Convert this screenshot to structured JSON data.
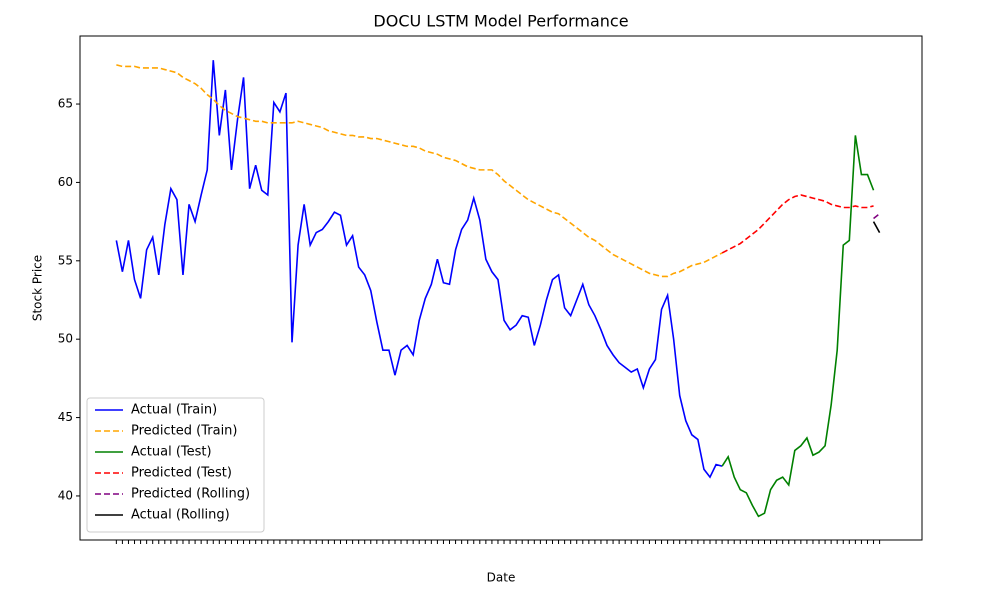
{
  "chart_data": {
    "type": "line",
    "title": "DOCU LSTM Model Performance",
    "x_label": "Date",
    "y_label": "Stock Price",
    "categories": [
      null,
      null,
      null,
      null,
      null,
      null,
      null,
      null,
      null,
      null,
      null,
      null,
      null,
      null,
      null,
      null,
      null,
      null,
      null,
      null,
      null,
      null,
      null,
      null,
      null,
      null,
      null,
      null,
      null,
      null,
      null,
      null,
      null,
      null,
      null,
      null,
      null,
      null,
      null,
      null,
      null,
      null,
      null,
      null,
      null,
      null,
      null,
      null,
      null,
      null,
      null,
      null,
      null,
      null,
      null,
      null,
      null,
      null,
      null,
      null,
      null,
      null,
      null,
      null,
      null,
      null,
      null,
      null,
      null,
      null,
      null,
      null,
      null,
      null,
      null,
      null,
      null,
      null,
      null,
      null,
      null,
      null,
      null,
      null,
      null,
      null,
      null,
      null,
      null,
      null,
      null,
      null,
      null,
      null,
      null,
      null,
      null,
      null,
      null,
      null,
      null,
      null,
      null,
      null,
      null,
      null,
      null,
      null,
      null,
      null,
      null,
      null,
      null,
      null,
      null,
      null,
      null,
      null,
      null,
      null,
      null,
      null,
      null,
      null,
      null,
      null,
      null
    ],
    "xlim": [
      -6,
      133
    ],
    "ylim": [
      37.19,
      69.34
    ],
    "yticks": [
      40,
      45,
      50,
      55,
      60,
      65
    ],
    "grid": false,
    "legend": "lower left",
    "series": [
      {
        "name": "Actual (Train)",
        "color": "blue",
        "dash": false,
        "values": [
          56.3,
          54.3,
          56.3,
          53.8,
          52.6,
          55.7,
          56.5,
          54.1,
          57.3,
          59.6,
          58.9,
          54.1,
          58.6,
          57.5,
          59.2,
          60.8,
          67.8,
          63.0,
          65.9,
          60.8,
          64.0,
          66.7,
          59.6,
          61.1,
          59.5,
          59.2,
          65.1,
          64.5,
          65.7,
          49.8,
          56.0,
          58.6,
          56.0,
          56.8,
          57.0,
          57.5,
          58.1,
          57.9,
          56.0,
          56.6,
          54.6,
          54.1,
          53.1,
          51.1,
          49.3,
          49.3,
          47.7,
          49.3,
          49.6,
          49.0,
          51.2,
          52.6,
          53.5,
          55.1,
          53.6,
          53.5,
          55.7,
          57.0,
          57.6,
          59.0,
          57.6,
          55.1,
          54.3,
          53.8,
          51.2,
          50.6,
          50.9,
          51.5,
          51.4,
          49.6,
          50.9,
          52.5,
          53.8,
          54.1,
          52.0,
          51.5,
          52.5,
          53.5,
          52.2,
          51.5,
          50.6,
          49.6,
          49.0,
          48.5,
          48.2,
          47.9,
          48.1,
          46.9,
          48.1,
          48.7,
          51.9,
          52.8,
          50.0,
          46.4,
          44.8,
          43.9,
          43.6,
          41.7,
          41.2,
          42.0,
          41.9,
          null,
          null,
          null,
          null,
          null,
          null,
          null,
          null,
          null,
          null,
          null,
          null,
          null,
          null,
          null,
          null,
          null,
          null,
          null,
          null,
          null,
          null,
          null,
          null,
          null,
          null
        ]
      },
      {
        "name": "Predicted (Train)",
        "color": "orange",
        "dash": true,
        "values": [
          67.5,
          67.4,
          67.4,
          67.4,
          67.3,
          67.3,
          67.3,
          67.3,
          67.2,
          67.1,
          67.0,
          66.7,
          66.5,
          66.3,
          66.0,
          65.6,
          65.3,
          64.9,
          64.6,
          64.4,
          64.2,
          64.1,
          64.0,
          63.9,
          63.9,
          63.8,
          63.8,
          63.8,
          63.8,
          63.8,
          63.9,
          63.8,
          63.7,
          63.6,
          63.5,
          63.3,
          63.2,
          63.1,
          63.0,
          63.0,
          62.9,
          62.9,
          62.8,
          62.8,
          62.7,
          62.6,
          62.5,
          62.4,
          62.3,
          62.3,
          62.2,
          62.0,
          61.9,
          61.8,
          61.6,
          61.5,
          61.4,
          61.2,
          61.0,
          60.9,
          60.8,
          60.8,
          60.8,
          60.5,
          60.1,
          59.8,
          59.5,
          59.2,
          58.9,
          58.7,
          58.5,
          58.3,
          58.1,
          58.0,
          57.7,
          57.4,
          57.1,
          56.8,
          56.5,
          56.3,
          56.0,
          55.7,
          55.4,
          55.2,
          55.0,
          54.8,
          54.6,
          54.4,
          54.2,
          54.1,
          54.0,
          54.0,
          54.2,
          54.3,
          54.5,
          54.7,
          54.8,
          54.9,
          55.1,
          55.3,
          55.5,
          null,
          null,
          null,
          null,
          null,
          null,
          null,
          null,
          null,
          null,
          null,
          null,
          null,
          null,
          null,
          null,
          null,
          null,
          null,
          null,
          null,
          null,
          null,
          null,
          null,
          null
        ]
      },
      {
        "name": "Actual (Test)",
        "color": "green",
        "dash": false,
        "values": [
          null,
          null,
          null,
          null,
          null,
          null,
          null,
          null,
          null,
          null,
          null,
          null,
          null,
          null,
          null,
          null,
          null,
          null,
          null,
          null,
          null,
          null,
          null,
          null,
          null,
          null,
          null,
          null,
          null,
          null,
          null,
          null,
          null,
          null,
          null,
          null,
          null,
          null,
          null,
          null,
          null,
          null,
          null,
          null,
          null,
          null,
          null,
          null,
          null,
          null,
          null,
          null,
          null,
          null,
          null,
          null,
          null,
          null,
          null,
          null,
          null,
          null,
          null,
          null,
          null,
          null,
          null,
          null,
          null,
          null,
          null,
          null,
          null,
          null,
          null,
          null,
          null,
          null,
          null,
          null,
          null,
          null,
          null,
          null,
          null,
          null,
          null,
          null,
          null,
          null,
          null,
          null,
          null,
          null,
          null,
          null,
          null,
          null,
          null,
          null,
          41.9,
          42.5,
          41.2,
          40.4,
          40.2,
          39.4,
          38.7,
          38.9,
          40.4,
          41.0,
          41.2,
          40.7,
          42.9,
          43.2,
          43.7,
          42.6,
          42.8,
          43.2,
          45.8,
          49.3,
          56.0,
          56.3,
          63.0,
          60.5,
          60.5,
          59.5,
          null
        ]
      },
      {
        "name": "Predicted (Test)",
        "color": "red",
        "dash": true,
        "values": [
          null,
          null,
          null,
          null,
          null,
          null,
          null,
          null,
          null,
          null,
          null,
          null,
          null,
          null,
          null,
          null,
          null,
          null,
          null,
          null,
          null,
          null,
          null,
          null,
          null,
          null,
          null,
          null,
          null,
          null,
          null,
          null,
          null,
          null,
          null,
          null,
          null,
          null,
          null,
          null,
          null,
          null,
          null,
          null,
          null,
          null,
          null,
          null,
          null,
          null,
          null,
          null,
          null,
          null,
          null,
          null,
          null,
          null,
          null,
          null,
          null,
          null,
          null,
          null,
          null,
          null,
          null,
          null,
          null,
          null,
          null,
          null,
          null,
          null,
          null,
          null,
          null,
          null,
          null,
          null,
          null,
          null,
          null,
          null,
          null,
          null,
          null,
          null,
          null,
          null,
          null,
          null,
          null,
          null,
          null,
          null,
          null,
          null,
          null,
          null,
          55.5,
          55.7,
          55.9,
          56.1,
          56.4,
          56.7,
          57.0,
          57.4,
          57.8,
          58.2,
          58.6,
          58.9,
          59.1,
          59.2,
          59.1,
          59.0,
          58.9,
          58.8,
          58.6,
          58.5,
          58.4,
          58.4,
          58.5,
          58.4,
          58.4,
          58.5,
          null
        ]
      },
      {
        "name": "Predicted (Rolling)",
        "color": "purple",
        "dash": true,
        "values": [
          null,
          null,
          null,
          null,
          null,
          null,
          null,
          null,
          null,
          null,
          null,
          null,
          null,
          null,
          null,
          null,
          null,
          null,
          null,
          null,
          null,
          null,
          null,
          null,
          null,
          null,
          null,
          null,
          null,
          null,
          null,
          null,
          null,
          null,
          null,
          null,
          null,
          null,
          null,
          null,
          null,
          null,
          null,
          null,
          null,
          null,
          null,
          null,
          null,
          null,
          null,
          null,
          null,
          null,
          null,
          null,
          null,
          null,
          null,
          null,
          null,
          null,
          null,
          null,
          null,
          null,
          null,
          null,
          null,
          null,
          null,
          null,
          null,
          null,
          null,
          null,
          null,
          null,
          null,
          null,
          null,
          null,
          null,
          null,
          null,
          null,
          null,
          null,
          null,
          null,
          null,
          null,
          null,
          null,
          null,
          null,
          null,
          null,
          null,
          null,
          null,
          null,
          null,
          null,
          null,
          null,
          null,
          null,
          null,
          null,
          null,
          null,
          null,
          null,
          null,
          null,
          null,
          null,
          null,
          null,
          null,
          null,
          null,
          null,
          null,
          57.7,
          58.0
        ]
      },
      {
        "name": "Actual (Rolling)",
        "color": "black",
        "dash": false,
        "values": [
          null,
          null,
          null,
          null,
          null,
          null,
          null,
          null,
          null,
          null,
          null,
          null,
          null,
          null,
          null,
          null,
          null,
          null,
          null,
          null,
          null,
          null,
          null,
          null,
          null,
          null,
          null,
          null,
          null,
          null,
          null,
          null,
          null,
          null,
          null,
          null,
          null,
          null,
          null,
          null,
          null,
          null,
          null,
          null,
          null,
          null,
          null,
          null,
          null,
          null,
          null,
          null,
          null,
          null,
          null,
          null,
          null,
          null,
          null,
          null,
          null,
          null,
          null,
          null,
          null,
          null,
          null,
          null,
          null,
          null,
          null,
          null,
          null,
          null,
          null,
          null,
          null,
          null,
          null,
          null,
          null,
          null,
          null,
          null,
          null,
          null,
          null,
          null,
          null,
          null,
          null,
          null,
          null,
          null,
          null,
          null,
          null,
          null,
          null,
          null,
          null,
          null,
          null,
          null,
          null,
          null,
          null,
          null,
          null,
          null,
          null,
          null,
          null,
          null,
          null,
          null,
          null,
          null,
          null,
          null,
          null,
          null,
          null,
          null,
          null,
          57.5,
          56.8
        ]
      }
    ]
  }
}
